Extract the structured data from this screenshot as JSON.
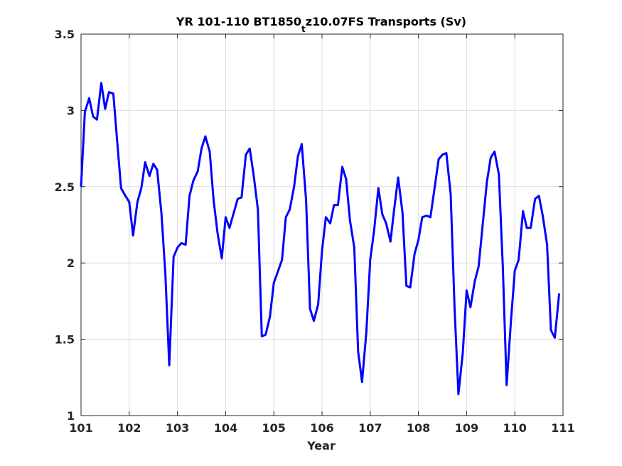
{
  "chart_data": {
    "type": "line",
    "title": {
      "prefix": "YR 101-110 BT1850",
      "subscript": "t",
      "suffix": "z10.07FS Transports (Sv)"
    },
    "xlabel": "Year",
    "ylabel": "",
    "xlim": [
      101,
      111
    ],
    "ylim": [
      1,
      3.5
    ],
    "xticks": [
      101,
      102,
      103,
      104,
      105,
      106,
      107,
      108,
      109,
      110,
      111
    ],
    "yticks": [
      1,
      1.5,
      2,
      2.5,
      3,
      3.5
    ],
    "ytick_labels": [
      "1",
      "1.5",
      "2",
      "2.5",
      "3",
      "3.5"
    ],
    "grid": true,
    "line_color": "#0000ff",
    "series": [
      {
        "x": [
          101.0,
          101.08,
          101.17,
          101.25,
          101.33,
          101.42,
          101.5,
          101.58,
          101.67,
          101.75,
          101.83,
          101.92,
          102.0,
          102.08,
          102.17,
          102.25,
          102.33,
          102.42,
          102.5,
          102.58,
          102.67,
          102.75,
          102.83,
          102.92,
          103.0,
          103.08,
          103.17,
          103.25,
          103.33,
          103.42,
          103.5,
          103.58,
          103.67,
          103.75,
          103.83,
          103.92,
          104.0,
          104.08,
          104.17,
          104.25,
          104.33,
          104.42,
          104.5,
          104.58,
          104.67,
          104.75,
          104.83,
          104.92,
          105.0,
          105.08,
          105.17,
          105.25,
          105.33,
          105.42,
          105.5,
          105.58,
          105.67,
          105.75,
          105.83,
          105.92,
          106.0,
          106.08,
          106.17,
          106.25,
          106.33,
          106.42,
          106.5,
          106.58,
          106.67,
          106.75,
          106.83,
          106.92,
          107.0,
          107.08,
          107.17,
          107.25,
          107.33,
          107.42,
          107.5,
          107.58,
          107.67,
          107.75,
          107.83,
          107.92,
          108.0,
          108.08,
          108.17,
          108.25,
          108.33,
          108.42,
          108.5,
          108.58,
          108.67,
          108.75,
          108.83,
          108.92,
          109.0,
          109.08,
          109.17,
          109.25,
          109.33,
          109.42,
          109.5,
          109.58,
          109.67,
          109.75,
          109.83,
          109.92,
          110.0,
          110.08,
          110.17,
          110.25,
          110.33,
          110.42,
          110.5,
          110.58,
          110.67,
          110.75,
          110.83,
          110.92
        ],
        "y": [
          2.5,
          2.99,
          3.08,
          2.96,
          2.94,
          3.18,
          3.01,
          3.12,
          3.11,
          2.8,
          2.49,
          2.44,
          2.4,
          2.18,
          2.4,
          2.49,
          2.66,
          2.57,
          2.65,
          2.61,
          2.32,
          1.93,
          1.33,
          2.04,
          2.1,
          2.13,
          2.12,
          2.44,
          2.54,
          2.6,
          2.75,
          2.83,
          2.73,
          2.41,
          2.2,
          2.03,
          2.3,
          2.23,
          2.33,
          2.42,
          2.43,
          2.71,
          2.75,
          2.58,
          2.35,
          1.52,
          1.53,
          1.65,
          1.87,
          1.94,
          2.02,
          2.3,
          2.35,
          2.5,
          2.7,
          2.78,
          2.41,
          1.7,
          1.62,
          1.73,
          2.08,
          2.3,
          2.26,
          2.38,
          2.38,
          2.63,
          2.55,
          2.28,
          2.1,
          1.42,
          1.22,
          1.55,
          2.02,
          2.21,
          2.49,
          2.32,
          2.26,
          2.14,
          2.36,
          2.56,
          2.33,
          1.85,
          1.84,
          2.06,
          2.15,
          2.3,
          2.31,
          2.3,
          2.48,
          2.68,
          2.71,
          2.72,
          2.45,
          1.7,
          1.14,
          1.41,
          1.82,
          1.71,
          1.88,
          1.98,
          2.24,
          2.53,
          2.69,
          2.73,
          2.58,
          1.98,
          1.2,
          1.62,
          1.95,
          2.02,
          2.34,
          2.23,
          2.23,
          2.42,
          2.44,
          2.31,
          2.12,
          1.56,
          1.51,
          1.8
        ]
      }
    ]
  }
}
